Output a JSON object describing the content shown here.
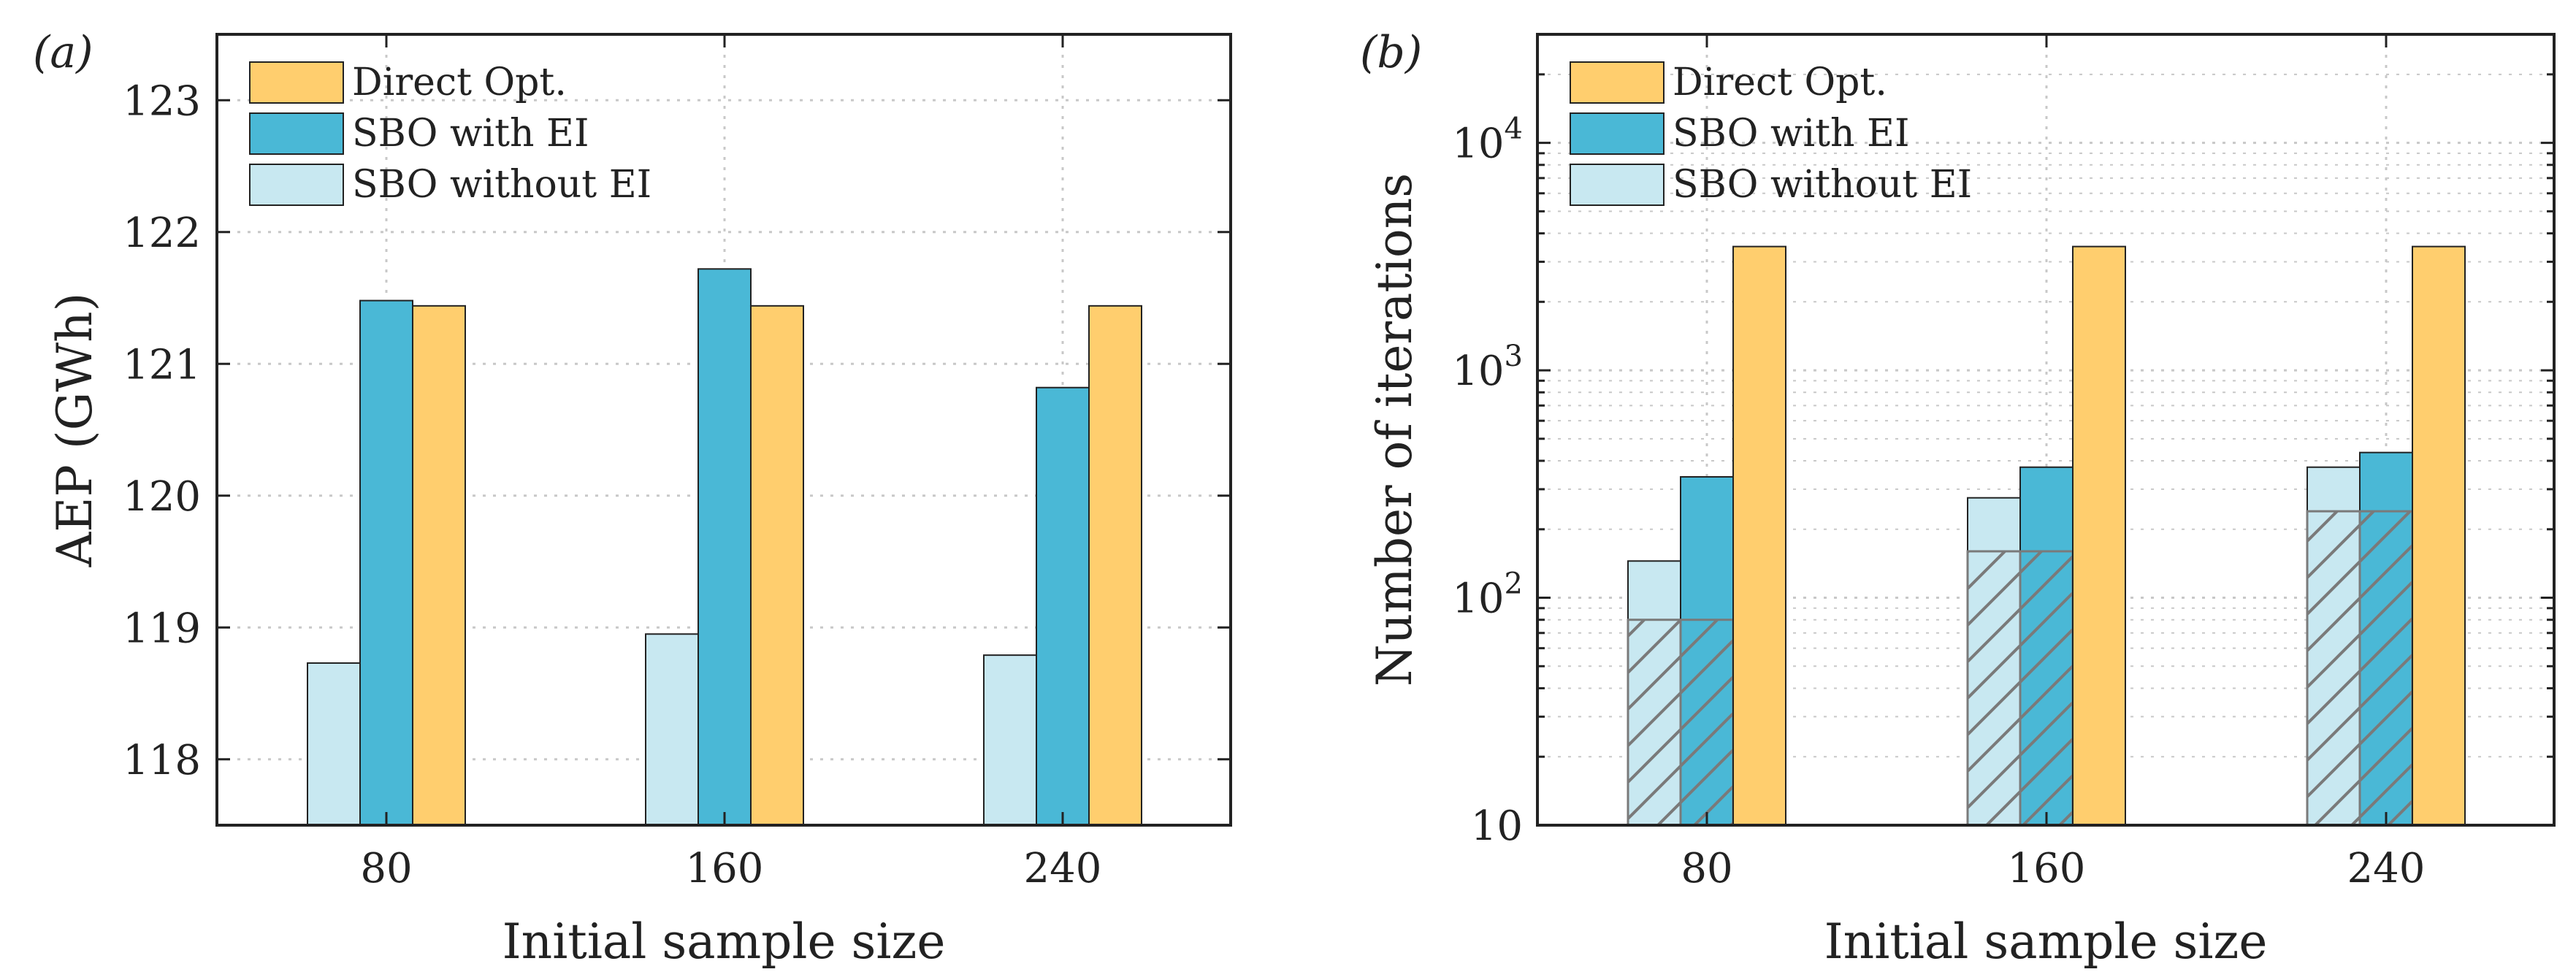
{
  "colors": {
    "direct": "#FFCE6E",
    "sbo_with_ei": "#4AB8D6",
    "sbo_without_ei": "#C8E8F1",
    "grid": "#C8C8C8",
    "axis": "#222222",
    "hatch": "#7A7A7A"
  },
  "chart_data": [
    {
      "type": "bar",
      "panel_label": "(a)",
      "xlabel": "Initial sample size",
      "ylabel": "AEP (GWh)",
      "categories": [
        "80",
        "160",
        "240"
      ],
      "ylim": [
        117.5,
        123.5
      ],
      "yticks": [
        "118",
        "119",
        "120",
        "121",
        "122",
        "123"
      ],
      "yscale": "linear",
      "grid": true,
      "legend_position": "top-left",
      "series": [
        {
          "name": "SBO without EI",
          "key": "sbo_without_ei",
          "values": [
            118.73,
            118.95,
            118.79
          ]
        },
        {
          "name": "SBO with EI",
          "key": "sbo_with_ei",
          "values": [
            121.48,
            121.72,
            120.82
          ]
        },
        {
          "name": "Direct Opt.",
          "key": "direct",
          "values": [
            121.44,
            121.44,
            121.44
          ]
        }
      ]
    },
    {
      "type": "bar",
      "panel_label": "(b)",
      "xlabel": "Initial sample size",
      "ylabel": "Number of iterations",
      "categories": [
        "80",
        "160",
        "240"
      ],
      "ylim": [
        10,
        30000
      ],
      "yticks": [
        "10",
        "10^2",
        "10^3",
        "10^4"
      ],
      "yscale": "log",
      "grid": true,
      "legend_position": "top-left",
      "series": [
        {
          "name": "SBO without EI",
          "key": "sbo_without_ei",
          "values": [
            145,
            275,
            375
          ],
          "hatched_portion": [
            80,
            160,
            240
          ]
        },
        {
          "name": "SBO with EI",
          "key": "sbo_with_ei",
          "values": [
            340,
            375,
            435
          ],
          "hatched_portion": [
            80,
            160,
            240
          ]
        },
        {
          "name": "Direct Opt.",
          "key": "direct",
          "values": [
            3500,
            3500,
            3500
          ]
        }
      ]
    }
  ]
}
